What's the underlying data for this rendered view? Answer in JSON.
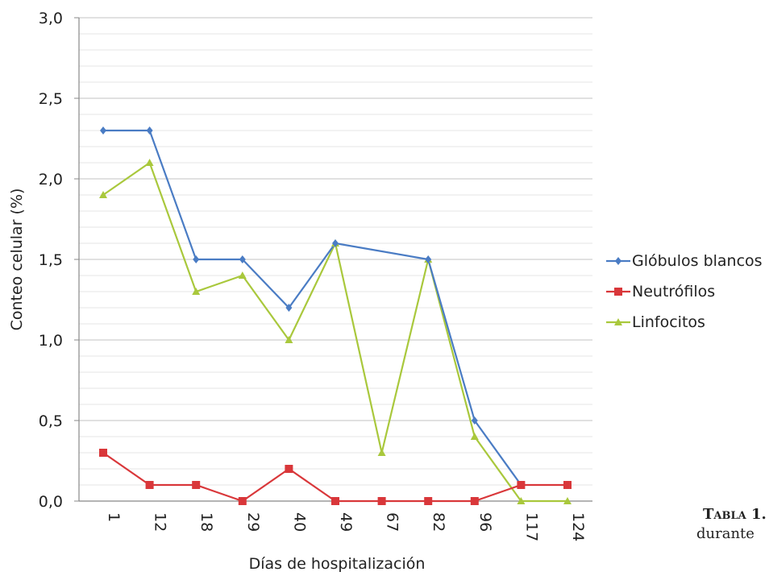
{
  "chart_data": {
    "type": "line",
    "title": "",
    "xlabel": "Días de hospitalización",
    "ylabel": "Conteo celular (%)",
    "ylim": [
      0,
      3
    ],
    "yticks": [
      "0,0",
      "0,5",
      "1,0",
      "1,5",
      "2,0",
      "2,5",
      "3,0"
    ],
    "categories": [
      "1",
      "12",
      "18",
      "29",
      "40",
      "49",
      "67",
      "82",
      "96",
      "117",
      "124"
    ],
    "grid": "horizontal",
    "legend_position": "right",
    "series": [
      {
        "name": "Glóbulos blancos",
        "color": "#4a7cc4",
        "marker": "diamond",
        "values": [
          2.3,
          2.3,
          1.5,
          1.5,
          1.2,
          1.6,
          null,
          1.5,
          0.5,
          0.1,
          null
        ]
      },
      {
        "name": "Neutrófilos",
        "color": "#d9373a",
        "marker": "square",
        "values": [
          0.3,
          0.1,
          0.1,
          0.0,
          0.2,
          0.0,
          0.0,
          0.0,
          0.0,
          0.1,
          0.1
        ]
      },
      {
        "name": "Linfocitos",
        "color": "#a9c83c",
        "marker": "triangle",
        "values": [
          1.9,
          2.1,
          1.3,
          1.4,
          1.0,
          1.6,
          0.3,
          1.5,
          0.4,
          0.0,
          0.0
        ]
      }
    ]
  },
  "caption": {
    "label": "Tabla 1.",
    "text": "durante"
  }
}
